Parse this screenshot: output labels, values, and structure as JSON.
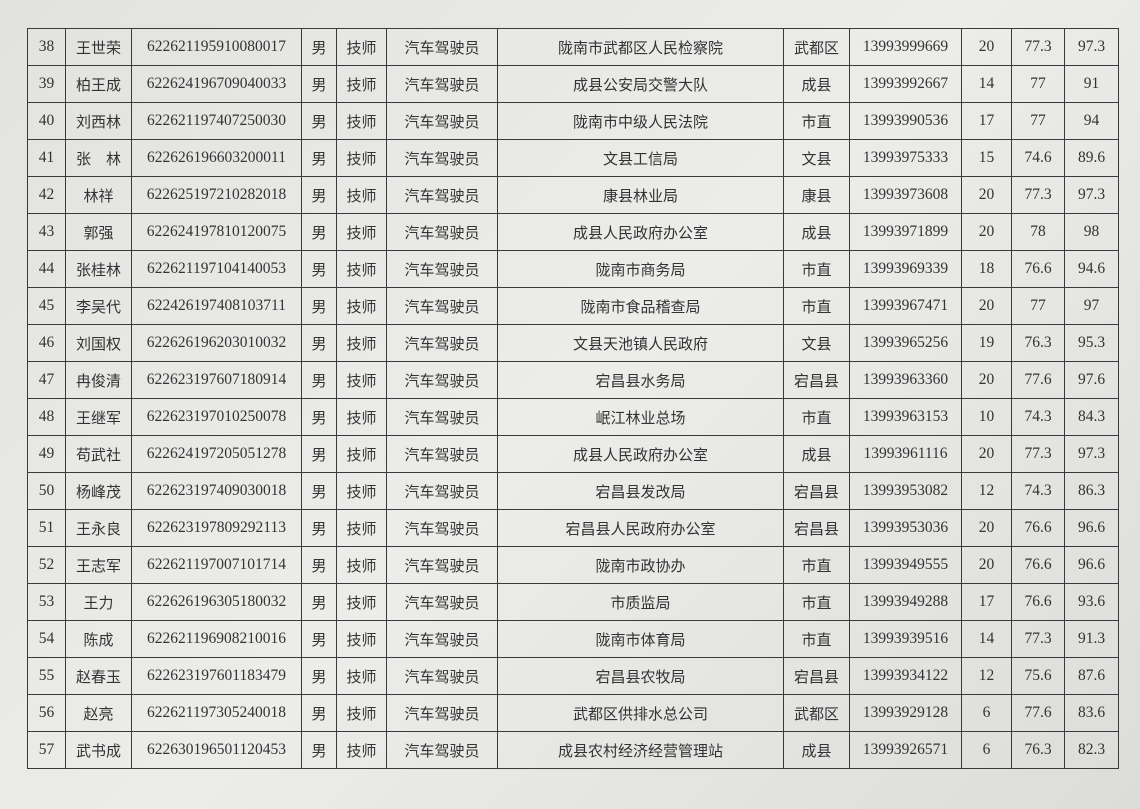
{
  "rows": [
    {
      "no": "38",
      "name": "王世荣",
      "id": "622621195910080017",
      "gender": "男",
      "title": "技师",
      "job": "汽车驾驶员",
      "unit": "陇南市武都区人民检察院",
      "area": "武都区",
      "phone": "13993999669",
      "s1": "20",
      "s2": "77.3",
      "total": "97.3"
    },
    {
      "no": "39",
      "name": "柏王成",
      "id": "622624196709040033",
      "gender": "男",
      "title": "技师",
      "job": "汽车驾驶员",
      "unit": "成县公安局交警大队",
      "area": "成县",
      "phone": "13993992667",
      "s1": "14",
      "s2": "77",
      "total": "91"
    },
    {
      "no": "40",
      "name": "刘西林",
      "id": "622621197407250030",
      "gender": "男",
      "title": "技师",
      "job": "汽车驾驶员",
      "unit": "陇南市中级人民法院",
      "area": "市直",
      "phone": "13993990536",
      "s1": "17",
      "s2": "77",
      "total": "94"
    },
    {
      "no": "41",
      "name": "张　林",
      "id": "622626196603200011",
      "gender": "男",
      "title": "技师",
      "job": "汽车驾驶员",
      "unit": "文县工信局",
      "area": "文县",
      "phone": "13993975333",
      "s1": "15",
      "s2": "74.6",
      "total": "89.6"
    },
    {
      "no": "42",
      "name": "林祥",
      "id": "622625197210282018",
      "gender": "男",
      "title": "技师",
      "job": "汽车驾驶员",
      "unit": "康县林业局",
      "area": "康县",
      "phone": "13993973608",
      "s1": "20",
      "s2": "77.3",
      "total": "97.3"
    },
    {
      "no": "43",
      "name": "郭强",
      "id": "622624197810120075",
      "gender": "男",
      "title": "技师",
      "job": "汽车驾驶员",
      "unit": "成县人民政府办公室",
      "area": "成县",
      "phone": "13993971899",
      "s1": "20",
      "s2": "78",
      "total": "98"
    },
    {
      "no": "44",
      "name": "张桂林",
      "id": "622621197104140053",
      "gender": "男",
      "title": "技师",
      "job": "汽车驾驶员",
      "unit": "陇南市商务局",
      "area": "市直",
      "phone": "13993969339",
      "s1": "18",
      "s2": "76.6",
      "total": "94.6"
    },
    {
      "no": "45",
      "name": "李吴代",
      "id": "622426197408103711",
      "gender": "男",
      "title": "技师",
      "job": "汽车驾驶员",
      "unit": "陇南市食品稽查局",
      "area": "市直",
      "phone": "13993967471",
      "s1": "20",
      "s2": "77",
      "total": "97"
    },
    {
      "no": "46",
      "name": "刘国权",
      "id": "622626196203010032",
      "gender": "男",
      "title": "技师",
      "job": "汽车驾驶员",
      "unit": "文县天池镇人民政府",
      "area": "文县",
      "phone": "13993965256",
      "s1": "19",
      "s2": "76.3",
      "total": "95.3"
    },
    {
      "no": "47",
      "name": "冉俊清",
      "id": "622623197607180914",
      "gender": "男",
      "title": "技师",
      "job": "汽车驾驶员",
      "unit": "宕昌县水务局",
      "area": "宕昌县",
      "phone": "13993963360",
      "s1": "20",
      "s2": "77.6",
      "total": "97.6"
    },
    {
      "no": "48",
      "name": "王继军",
      "id": "622623197010250078",
      "gender": "男",
      "title": "技师",
      "job": "汽车驾驶员",
      "unit": "岷江林业总场",
      "area": "市直",
      "phone": "13993963153",
      "s1": "10",
      "s2": "74.3",
      "total": "84.3"
    },
    {
      "no": "49",
      "name": "苟武社",
      "id": "622624197205051278",
      "gender": "男",
      "title": "技师",
      "job": "汽车驾驶员",
      "unit": "成县人民政府办公室",
      "area": "成县",
      "phone": "13993961116",
      "s1": "20",
      "s2": "77.3",
      "total": "97.3"
    },
    {
      "no": "50",
      "name": "杨峰茂",
      "id": "622623197409030018",
      "gender": "男",
      "title": "技师",
      "job": "汽车驾驶员",
      "unit": "宕昌县发改局",
      "area": "宕昌县",
      "phone": "13993953082",
      "s1": "12",
      "s2": "74.3",
      "total": "86.3"
    },
    {
      "no": "51",
      "name": "王永良",
      "id": "622623197809292113",
      "gender": "男",
      "title": "技师",
      "job": "汽车驾驶员",
      "unit": "宕昌县人民政府办公室",
      "area": "宕昌县",
      "phone": "13993953036",
      "s1": "20",
      "s2": "76.6",
      "total": "96.6"
    },
    {
      "no": "52",
      "name": "王志军",
      "id": "622621197007101714",
      "gender": "男",
      "title": "技师",
      "job": "汽车驾驶员",
      "unit": "陇南市政协办",
      "area": "市直",
      "phone": "13993949555",
      "s1": "20",
      "s2": "76.6",
      "total": "96.6"
    },
    {
      "no": "53",
      "name": "王力",
      "id": "622626196305180032",
      "gender": "男",
      "title": "技师",
      "job": "汽车驾驶员",
      "unit": "市质监局",
      "area": "市直",
      "phone": "13993949288",
      "s1": "17",
      "s2": "76.6",
      "total": "93.6"
    },
    {
      "no": "54",
      "name": "陈成",
      "id": "622621196908210016",
      "gender": "男",
      "title": "技师",
      "job": "汽车驾驶员",
      "unit": "陇南市体育局",
      "area": "市直",
      "phone": "13993939516",
      "s1": "14",
      "s2": "77.3",
      "total": "91.3"
    },
    {
      "no": "55",
      "name": "赵春玉",
      "id": "622623197601183479",
      "gender": "男",
      "title": "技师",
      "job": "汽车驾驶员",
      "unit": "宕昌县农牧局",
      "area": "宕昌县",
      "phone": "13993934122",
      "s1": "12",
      "s2": "75.6",
      "total": "87.6"
    },
    {
      "no": "56",
      "name": "赵亮",
      "id": "622621197305240018",
      "gender": "男",
      "title": "技师",
      "job": "汽车驾驶员",
      "unit": "武都区供排水总公司",
      "area": "武都区",
      "phone": "13993929128",
      "s1": "6",
      "s2": "77.6",
      "total": "83.6"
    },
    {
      "no": "57",
      "name": "武书成",
      "id": "622630196501120453",
      "gender": "男",
      "title": "技师",
      "job": "汽车驾驶员",
      "unit": "成县农村经济经营管理站",
      "area": "成县",
      "phone": "13993926571",
      "s1": "6",
      "s2": "76.3",
      "total": "82.3"
    }
  ]
}
